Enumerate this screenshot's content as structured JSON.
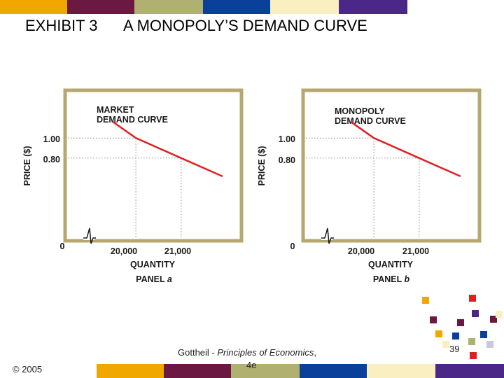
{
  "slide": {
    "exhibit_label": "EXHIBIT 3",
    "title": "A MONOPOLY’S DEMAND CURVE",
    "copyright": "© 2005",
    "source_line1_prefix": "Gottheil - ",
    "source_line1_italic": "Principles of Economics",
    "source_line1_suffix": ",",
    "source_line2": "4e",
    "page_number": "39"
  },
  "colors": {
    "curve": "#e02020",
    "frame": "#b5a770",
    "plot_bg": "#ffffff",
    "gridline": "#888888",
    "stripe_palette": [
      "#f0a800",
      "#6b1842",
      "#b0b070",
      "#0a3f9a",
      "#faefc0",
      "#4b2788"
    ]
  },
  "chart_data": [
    {
      "type": "line",
      "panel_label": "PANEL",
      "panel_letter": "a",
      "curve_label_line1": "MARKET",
      "curve_label_line2": "DEMAND CURVE",
      "xlabel": "QUANTITY",
      "ylabel": "PRICE ($)",
      "x_ticks": [
        "20,000",
        "21,000"
      ],
      "y_ticks": [
        "1.00",
        "0.80"
      ],
      "origin_label": "0",
      "axis_break": true,
      "series": [
        {
          "x": [
            19500,
            20000,
            21000,
            21900
          ],
          "y": [
            1.16,
            1.0,
            0.8,
            0.62
          ]
        }
      ],
      "reference_points": [
        {
          "x": 20000,
          "y": 1.0
        },
        {
          "x": 21000,
          "y": 0.8
        }
      ],
      "xlim": [
        18500,
        22300
      ],
      "ylim": [
        0,
        1.45
      ],
      "grid": false
    },
    {
      "type": "line",
      "panel_label": "PANEL",
      "panel_letter": "b",
      "curve_label_line1": "MONOPOLY",
      "curve_label_line2": "DEMAND CURVE",
      "xlabel": "QUANTITY",
      "ylabel": "PRICE ($)",
      "x_ticks": [
        "20,000",
        "21,000"
      ],
      "y_ticks": [
        "1.00",
        "0.80"
      ],
      "origin_label": "0",
      "axis_break": true,
      "series": [
        {
          "x": [
            19500,
            20000,
            21000,
            21900
          ],
          "y": [
            1.16,
            1.0,
            0.8,
            0.62
          ]
        }
      ],
      "reference_points": [
        {
          "x": 20000,
          "y": 1.0
        },
        {
          "x": 21000,
          "y": 0.8
        }
      ],
      "xlim": [
        18500,
        22300
      ],
      "ylim": [
        0,
        1.45
      ],
      "grid": false
    }
  ]
}
